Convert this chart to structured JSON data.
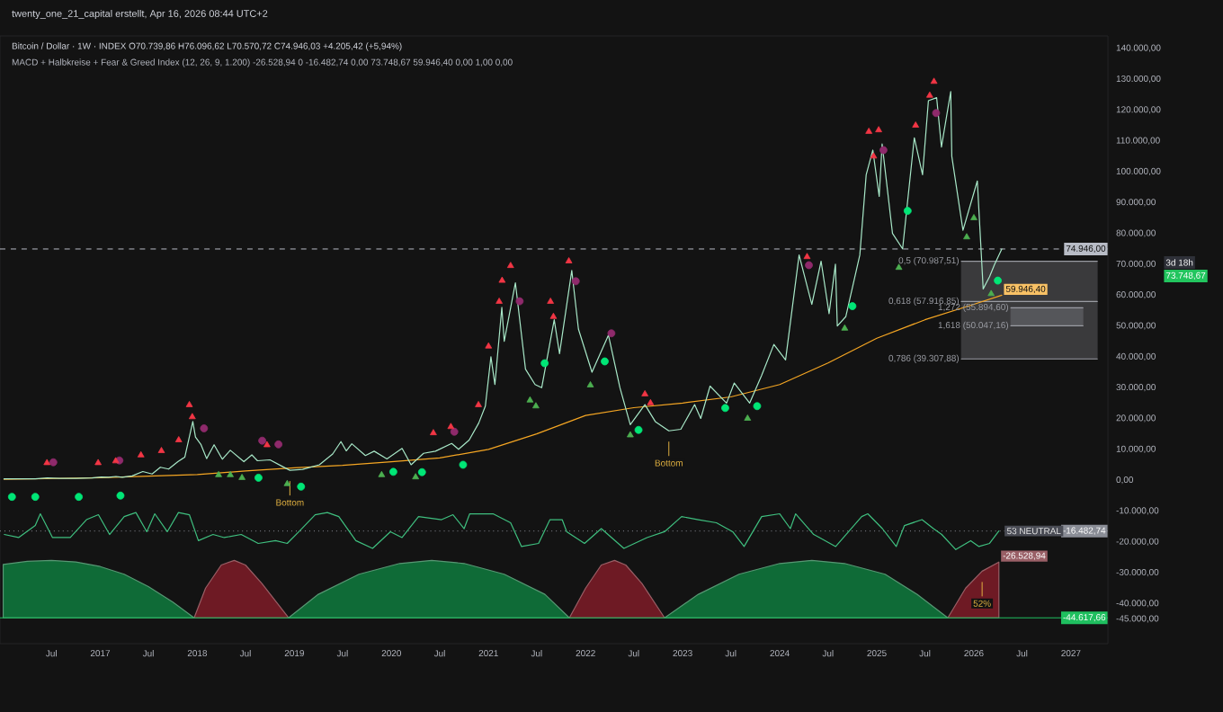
{
  "chart_data": {
    "type": "line",
    "title": "twenty_one_21_capital erstellt, Apr 16, 2026 08:44 UTC+2",
    "subtitle": "Bitcoin / Dollar · 1W · INDEX  O70.739,86 H76.096,62 L70.570,72 C74.946,03 +4.205,42 (+5,94%)",
    "annotations": [
      "MACD + Halbkreise + Fear & Greed Index (12, 26, 9, 1.200)  -26.528,94  0  -16.482,74  0,00  73.748,67  59.946,40  0,00  1,00  0,00",
      "3d 18h",
      "73.748,67",
      {
        "text": "Bottom",
        "x": "2018-12-15",
        "y": 3200
      },
      {
        "text": "Bottom",
        "x": "2022-11-10",
        "y": 16000
      },
      {
        "text": "53 NEUTRAL",
        "x": "2026-04-05",
        "y": -16482.74
      },
      {
        "text": "52%",
        "x": "2026-02-01",
        "y": -29500
      }
    ],
    "xlim": [
      "2015-12-20",
      "2027-05-20"
    ],
    "ylim": [
      -53000,
      144000
    ],
    "xticks": [
      {
        "value": "2016-07-01",
        "label": "Jul"
      },
      {
        "value": "2017-01-01",
        "label": "2017"
      },
      {
        "value": "2017-07-01",
        "label": "Jul"
      },
      {
        "value": "2018-01-01",
        "label": "2018"
      },
      {
        "value": "2018-07-01",
        "label": "Jul"
      },
      {
        "value": "2019-01-01",
        "label": "2019"
      },
      {
        "value": "2019-07-01",
        "label": "Jul"
      },
      {
        "value": "2020-01-01",
        "label": "2020"
      },
      {
        "value": "2020-07-01",
        "label": "Jul"
      },
      {
        "value": "2021-01-01",
        "label": "2021"
      },
      {
        "value": "2021-07-01",
        "label": "Jul"
      },
      {
        "value": "2022-01-01",
        "label": "2022"
      },
      {
        "value": "2022-07-01",
        "label": "Jul"
      },
      {
        "value": "2023-01-01",
        "label": "2023"
      },
      {
        "value": "2023-07-01",
        "label": "Jul"
      },
      {
        "value": "2024-01-01",
        "label": "2024"
      },
      {
        "value": "2024-07-01",
        "label": "Jul"
      },
      {
        "value": "2025-01-01",
        "label": "2025"
      },
      {
        "value": "2025-07-01",
        "label": "Jul"
      },
      {
        "value": "2026-01-01",
        "label": "2026"
      },
      {
        "value": "2026-07-01",
        "label": "Jul"
      },
      {
        "value": "2027-01-01",
        "label": "2027"
      }
    ],
    "yticks": [
      {
        "value": -45000,
        "label": "-45.000,00"
      },
      {
        "value": -40000,
        "label": "-40.000,00"
      },
      {
        "value": -30000,
        "label": "-30.000,00"
      },
      {
        "value": -20000,
        "label": "-20.000,00"
      },
      {
        "value": -10000,
        "label": "-10.000,00"
      },
      {
        "value": 0,
        "label": "0,00"
      },
      {
        "value": 10000,
        "label": "10.000,00"
      },
      {
        "value": 20000,
        "label": "20.000,00"
      },
      {
        "value": 30000,
        "label": "30.000,00"
      },
      {
        "value": 40000,
        "label": "40.000,00"
      },
      {
        "value": 50000,
        "label": "50.000,00"
      },
      {
        "value": 60000,
        "label": "60.000,00"
      },
      {
        "value": 70000,
        "label": "70.000,00"
      },
      {
        "value": 80000,
        "label": "80.000,00"
      },
      {
        "value": 90000,
        "label": "90.000,00"
      },
      {
        "value": 100000,
        "label": "100.000,00"
      },
      {
        "value": 110000,
        "label": "110.000,00"
      },
      {
        "value": 120000,
        "label": "120.000,00"
      },
      {
        "value": 130000,
        "label": "130.000,00"
      },
      {
        "value": 140000,
        "label": "140.000,00"
      }
    ],
    "ref_lines": [
      {
        "axis": "y",
        "value": 74946,
        "label": "74.946,00",
        "color": "#b8bcc6",
        "line_style": "dashed"
      },
      {
        "axis": "y",
        "value": -16482.74,
        "label": "-16.482,74",
        "color": "#8a8d96",
        "line_style": "dotted"
      },
      {
        "axis": "y",
        "value": -44617.66,
        "label": "-44.617,66",
        "color": "#1fbf5f",
        "line_style": "solid"
      }
    ],
    "series": [
      {
        "type": "area",
        "color": "#3a3a3c",
        "x": [
          "2025-11-15",
          "2027-04-10"
        ],
        "values": [
          null,
          null
        ],
        "lower": [
          39307.88,
          39307.88
        ],
        "upper": [
          70987.51,
          70987.51
        ]
      },
      {
        "type": "area",
        "color": "#55565a",
        "x": [
          "2026-05-20",
          "2027-02-15"
        ],
        "values": [
          null,
          null
        ],
        "lower": [
          50047.16,
          50047.16
        ],
        "upper": [
          55894.6,
          55894.6
        ]
      },
      {
        "name": "0,5 (70.987,51)",
        "color": "#9a9ca3",
        "x": [
          "2025-11-15",
          "2027-04-10"
        ],
        "values": [
          70987.51,
          70987.51
        ]
      },
      {
        "name": "0,618 (57.916,85)",
        "color": "#9a9ca3",
        "x": [
          "2025-11-15",
          "2027-04-10"
        ],
        "values": [
          57916.85,
          57916.85
        ]
      },
      {
        "name": "0,786 (39.307,88)",
        "color": "#9a9ca3",
        "x": [
          "2025-11-15",
          "2027-04-10"
        ],
        "values": [
          39307.88,
          39307.88
        ]
      },
      {
        "name": "1,272 (55.894,60)",
        "color": "#9a9ca3",
        "x": [
          "2026-05-20",
          "2027-02-15"
        ],
        "values": [
          55894.6,
          55894.6
        ]
      },
      {
        "name": "1,618 (50.047,16)",
        "color": "#9a9ca3",
        "x": [
          "2026-05-20",
          "2027-02-15"
        ],
        "values": [
          50047.16,
          50047.16
        ]
      },
      {
        "type": "area",
        "color": "#0f6b37",
        "x": [
          "2016-01-01",
          "2016-04-01",
          "2016-07-01",
          "2016-10-01",
          "2017-01-01",
          "2017-04-01",
          "2017-07-01",
          "2017-10-01",
          "2017-12-20",
          "2016-01-01"
        ],
        "values": [
          -27300,
          -26300,
          -26000,
          -26500,
          -28000,
          -30500,
          -34500,
          -39500,
          -44617.66,
          -44617.66
        ]
      },
      {
        "type": "area",
        "color": "#6e1a24",
        "x": [
          "2017-12-20",
          "2018-02-01",
          "2018-04-01",
          "2018-05-20",
          "2018-07-01",
          "2018-09-01",
          "2018-12-10"
        ],
        "values": [
          -44617.66,
          -35000,
          -27500,
          -26000,
          -27500,
          -33500,
          -44617.66
        ]
      },
      {
        "type": "area",
        "color": "#0f6b37",
        "x": [
          "2018-12-10",
          "2019-04-01",
          "2019-09-01",
          "2020-02-01",
          "2020-06-01",
          "2020-10-01",
          "2021-03-01",
          "2021-08-01",
          "2021-11-01"
        ],
        "values": [
          -44617.66,
          -37000,
          -30500,
          -27000,
          -26000,
          -27000,
          -30500,
          -37000,
          -44617.66
        ]
      },
      {
        "type": "area",
        "color": "#6e1a24",
        "x": [
          "2021-11-01",
          "2022-01-01",
          "2022-03-01",
          "2022-04-20",
          "2022-06-01",
          "2022-08-01",
          "2022-10-25"
        ],
        "values": [
          -44617.66,
          -35000,
          -27500,
          -26000,
          -27500,
          -33500,
          -44617.66
        ]
      },
      {
        "type": "area",
        "color": "#0f6b37",
        "x": [
          "2022-10-25",
          "2023-03-01",
          "2023-08-01",
          "2024-01-01",
          "2024-05-01",
          "2024-09-01",
          "2025-02-01",
          "2025-06-01",
          "2025-09-25"
        ],
        "values": [
          -44617.66,
          -37000,
          -30500,
          -27000,
          -26000,
          -27000,
          -30500,
          -37000,
          -44617.66
        ]
      },
      {
        "type": "area",
        "color": "#6e1a24",
        "x": [
          "2025-09-25",
          "2025-12-01",
          "2026-02-01",
          "2026-04-05",
          "2026-04-05"
        ],
        "values": [
          -44617.66,
          -35000,
          -29500,
          -26528.94,
          -44617.66
        ],
        "value_labels": [
          null,
          null,
          null,
          "-26.528,94",
          null
        ]
      },
      {
        "color": "#3fbf7f",
        "x": [
          "2016-01-05",
          "2016-02-28",
          "2016-05-01",
          "2016-05-20",
          "2016-07-05",
          "2016-09-10",
          "2016-11-10",
          "2016-12-25",
          "2017-02-05",
          "2017-04-01",
          "2017-05-15",
          "2017-06-25",
          "2017-07-25",
          "2017-09-10",
          "2017-10-22",
          "2017-12-02",
          "2018-01-05",
          "2018-03-01",
          "2018-04-12",
          "2018-06-15",
          "2018-08-18",
          "2018-10-22",
          "2018-12-05",
          "2019-01-18",
          "2019-03-20",
          "2019-05-05",
          "2019-06-17",
          "2019-08-20",
          "2019-10-22",
          "2019-12-28",
          "2020-02-10",
          "2020-04-12",
          "2020-07-08",
          "2020-08-20",
          "2020-10-01",
          "2020-10-22",
          "2021-01-18",
          "2021-03-25",
          "2021-05-05",
          "2021-07-08",
          "2021-08-20",
          "2021-10-05",
          "2021-10-22",
          "2021-12-28",
          "2022-03-01",
          "2022-05-25",
          "2022-08-20",
          "2022-10-25",
          "2022-12-28",
          "2023-03-01",
          "2023-05-08",
          "2023-07-08",
          "2023-08-20",
          "2023-10-25",
          "2024-01-01",
          "2024-02-10",
          "2024-03-01",
          "2024-05-08",
          "2024-05-30",
          "2024-07-30",
          "2024-11-05",
          "2024-11-28",
          "2025-01-22",
          "2025-03-15",
          "2025-04-15",
          "2025-06-20",
          "2025-08-02",
          "2025-09-02",
          "2025-10-25",
          "2025-12-20",
          "2026-01-20",
          "2026-03-01",
          "2026-04-05"
        ],
        "values": [
          -17600,
          -18600,
          -14700,
          -10900,
          -18600,
          -18600,
          -12800,
          -11200,
          -17600,
          -11800,
          -10500,
          -16700,
          -10900,
          -16700,
          -10500,
          -11200,
          -19600,
          -17600,
          -18600,
          -17600,
          -20500,
          -19600,
          -20500,
          -16700,
          -11200,
          -10500,
          -11800,
          -19600,
          -22100,
          -16700,
          -18600,
          -11800,
          -12800,
          -11200,
          -15700,
          -10900,
          -10900,
          -13800,
          -21500,
          -20500,
          -12800,
          -12800,
          -16700,
          -20500,
          -15700,
          -22100,
          -18600,
          -16700,
          -11800,
          -12800,
          -13800,
          -16700,
          -21500,
          -11800,
          -10900,
          -15700,
          -10900,
          -17600,
          -18600,
          -21500,
          -11800,
          -10900,
          -15700,
          -21500,
          -14700,
          -12800,
          -15700,
          -17600,
          -22500,
          -19600,
          -21500,
          -20500,
          -16482.74
        ]
      },
      {
        "color": "#f5a623",
        "x": [
          "2016-01-04",
          "2017-01-01",
          "2018-01-01",
          "2018-07-01",
          "2019-01-01",
          "2019-07-01",
          "2020-01-01",
          "2020-07-01",
          "2021-01-01",
          "2021-07-01",
          "2022-01-01",
          "2022-07-01",
          "2023-01-01",
          "2023-07-01",
          "2024-01-01",
          "2024-07-01",
          "2025-01-01",
          "2025-07-01",
          "2026-01-01",
          "2026-04-16"
        ],
        "values": [
          250,
          800,
          1800,
          3000,
          4000,
          4800,
          6000,
          7200,
          10000,
          15000,
          21000,
          23500,
          25000,
          27000,
          31000,
          38000,
          46000,
          52000,
          57000,
          59946.4
        ],
        "value_labels": [
          null,
          null,
          null,
          null,
          null,
          null,
          null,
          null,
          null,
          null,
          null,
          null,
          null,
          null,
          null,
          null,
          null,
          null,
          null,
          "59.946,40"
        ]
      },
      {
        "color": "#a8e8c8",
        "x": [
          "2016-01-04",
          "2016-03-01",
          "2016-05-01",
          "2016-06-15",
          "2016-08-01",
          "2016-10-01",
          "2016-12-01",
          "2017-01-05",
          "2017-02-01",
          "2017-03-01",
          "2017-03-25",
          "2017-05-01",
          "2017-06-10",
          "2017-07-15",
          "2017-08-15",
          "2017-09-15",
          "2017-10-20",
          "2017-11-15",
          "2017-12-15",
          "2017-12-25",
          "2018-01-15",
          "2018-02-05",
          "2018-03-05",
          "2018-04-05",
          "2018-05-05",
          "2018-06-25",
          "2018-07-25",
          "2018-08-15",
          "2018-10-01",
          "2018-11-20",
          "2018-12-15",
          "2019-02-01",
          "2019-04-05",
          "2019-05-25",
          "2019-06-25",
          "2019-07-15",
          "2019-08-05",
          "2019-09-25",
          "2019-10-28",
          "2019-12-15",
          "2020-02-10",
          "2020-03-15",
          "2020-05-01",
          "2020-06-15",
          "2020-08-15",
          "2020-09-10",
          "2020-10-20",
          "2020-11-25",
          "2020-12-20",
          "2021-01-10",
          "2021-01-25",
          "2021-02-20",
          "2021-03-01",
          "2021-04-12",
          "2021-05-20",
          "2021-06-25",
          "2021-07-20",
          "2021-09-05",
          "2021-09-25",
          "2021-11-10",
          "2021-12-05",
          "2022-01-25",
          "2022-03-28",
          "2022-05-10",
          "2022-06-18",
          "2022-08-12",
          "2022-09-20",
          "2022-11-10",
          "2022-12-25",
          "2023-02-15",
          "2023-03-10",
          "2023-04-14",
          "2023-06-15",
          "2023-07-14",
          "2023-09-10",
          "2023-10-25",
          "2023-12-10",
          "2024-01-23",
          "2024-03-14",
          "2024-05-01",
          "2024-06-05",
          "2024-07-05",
          "2024-07-29",
          "2024-08-05",
          "2024-09-06",
          "2024-10-29",
          "2024-11-22",
          "2024-12-17",
          "2025-01-10",
          "2025-01-21",
          "2025-03-01",
          "2025-04-08",
          "2025-05-22",
          "2025-06-22",
          "2025-07-14",
          "2025-08-14",
          "2025-09-01",
          "2025-10-06",
          "2025-10-10",
          "2025-11-21",
          "2026-01-14",
          "2026-02-05",
          "2026-03-01",
          "2026-03-20",
          "2026-04-16"
        ],
        "values": [
          430,
          420,
          450,
          750,
          580,
          610,
          750,
          1000,
          950,
          1200,
          950,
          1400,
          2800,
          2000,
          4200,
          3600,
          6000,
          7500,
          19000,
          14000,
          11500,
          7000,
          11500,
          6800,
          9700,
          6000,
          8200,
          6300,
          6600,
          4300,
          3200,
          3500,
          5000,
          8500,
          12500,
          9500,
          11800,
          8000,
          9400,
          6900,
          10300,
          5000,
          8700,
          9400,
          11900,
          10000,
          13000,
          18500,
          24000,
          40000,
          31000,
          56000,
          45000,
          64000,
          36000,
          31000,
          30000,
          52000,
          41000,
          68000,
          49000,
          35000,
          47000,
          30000,
          18000,
          24500,
          19000,
          16000,
          16500,
          24500,
          20000,
          30500,
          25000,
          31500,
          25000,
          34000,
          44000,
          39000,
          73000,
          57000,
          71000,
          54000,
          70000,
          50000,
          53000,
          73000,
          99000,
          107000,
          92000,
          109000,
          80000,
          75000,
          111000,
          99000,
          123000,
          124000,
          108000,
          126000,
          105000,
          81000,
          97000,
          62000,
          66000,
          70000,
          74946.03
        ]
      },
      {
        "type": "scatter",
        "marker": "circle",
        "color": "#8e2a6b",
        "x": [
          "2016-07-08",
          "2017-03-14",
          "2018-01-26",
          "2018-09-02",
          "2018-11-02",
          "2020-08-25",
          "2021-04-28",
          "2021-11-25",
          "2022-04-08",
          "2024-04-20",
          "2025-01-26",
          "2025-08-12"
        ],
        "values": [
          5800,
          6400,
          16800,
          12800,
          11600,
          15700,
          58000,
          64500,
          47600,
          69700,
          107000,
          119000
        ]
      },
      {
        "type": "scatter",
        "marker": "triangle",
        "color": "#f23645",
        "x": [
          "2016-06-14",
          "2016-12-24",
          "2017-02-28",
          "2017-06-03",
          "2017-08-19",
          "2017-10-23",
          "2017-12-02",
          "2017-12-13",
          "2018-09-20",
          "2020-06-07",
          "2020-08-12",
          "2020-11-24",
          "2021-01-01",
          "2021-02-10",
          "2021-02-21",
          "2021-03-25",
          "2021-08-22",
          "2021-09-02",
          "2021-10-30",
          "2022-08-12",
          "2022-09-02",
          "2024-04-13",
          "2024-12-02",
          "2025-01-08",
          "2024-12-20",
          "2025-05-27",
          "2025-07-19",
          "2025-08-04"
        ],
        "values": [
          5600,
          5600,
          6200,
          8100,
          9500,
          13000,
          24400,
          20500,
          11400,
          15300,
          17300,
          24400,
          43400,
          57900,
          64700,
          69500,
          57900,
          53000,
          71000,
          27900,
          25000,
          72400,
          113000,
          113500,
          105000,
          115000,
          124700,
          129200
        ]
      },
      {
        "type": "scatter",
        "marker": "triangle",
        "color": "#4caf50",
        "x": [
          "2018-03-22",
          "2018-05-05",
          "2018-06-18",
          "2018-12-05",
          "2019-11-25",
          "2020-04-01",
          "2021-06-06",
          "2021-06-28",
          "2022-01-19",
          "2022-06-18",
          "2023-09-02",
          "2024-09-02",
          "2025-03-25",
          "2025-12-05",
          "2026-01-01",
          "2026-03-07"
        ],
        "values": [
          1700,
          1700,
          800,
          -1200,
          1700,
          1000,
          25900,
          24000,
          30800,
          14600,
          20000,
          49200,
          68900,
          78800,
          85000,
          60400
        ]
      },
      {
        "type": "scatter",
        "marker": "circle",
        "color": "#00e676",
        "x": [
          "2016-02-03",
          "2016-05-01",
          "2016-10-12",
          "2017-03-18",
          "2018-08-19",
          "2019-01-26",
          "2020-01-08",
          "2020-04-25",
          "2020-09-27",
          "2021-07-31",
          "2022-03-14",
          "2022-07-19",
          "2023-06-10",
          "2023-10-08",
          "2024-10-01",
          "2025-04-27",
          "2026-04-01"
        ],
        "values": [
          -5400,
          -5400,
          -5400,
          -5000,
          800,
          -2100,
          2700,
          2600,
          5000,
          37900,
          38500,
          16300,
          23400,
          24000,
          56400,
          87300,
          64700
        ]
      }
    ]
  }
}
